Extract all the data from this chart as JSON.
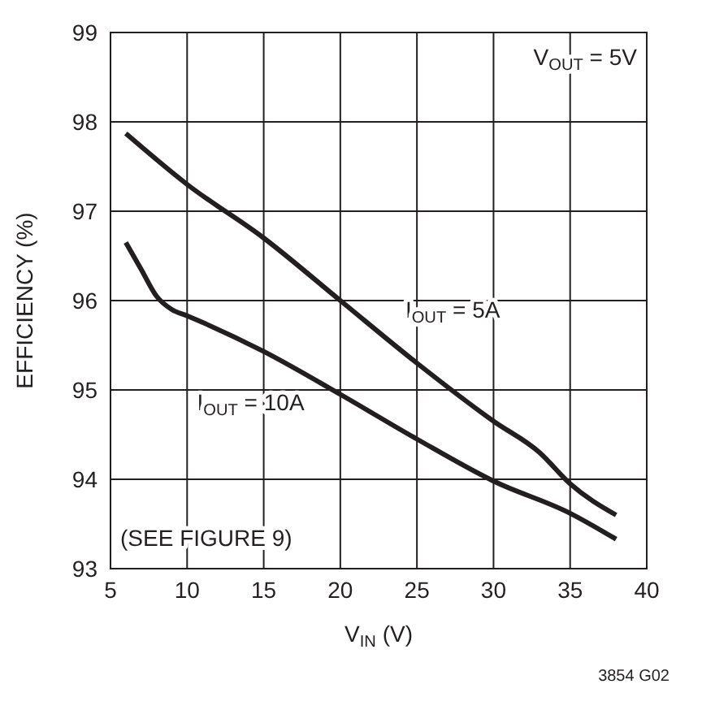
{
  "chart_data": {
    "type": "line",
    "xlabel": "V$_{IN}$ (V)",
    "ylabel": "EFFICIENCY (%)",
    "xlim": [
      5,
      40
    ],
    "xticks": [
      5,
      10,
      15,
      20,
      25,
      30,
      35,
      40
    ],
    "ylim": [
      93,
      99
    ],
    "yticks": [
      93,
      94,
      95,
      96,
      97,
      98,
      99
    ],
    "grid": true,
    "marker": "none",
    "line_style": "solid",
    "annotations": [
      "V$_{OUT}$ = 5V",
      "(SEE FIGURE 9)",
      "3854 G02"
    ],
    "series": [
      {
        "name": "I$_{OUT}$ = 5A",
        "color": "#231f20",
        "x": [
          6,
          10,
          15,
          20,
          25,
          30,
          33,
          35,
          38
        ],
        "values": [
          97.87,
          97.3,
          96.7,
          96.0,
          95.3,
          94.65,
          94.3,
          93.95,
          93.6
        ]
      },
      {
        "name": "I$_{OUT}$ = 10A",
        "color": "#231f20",
        "x": [
          6,
          7,
          8,
          9,
          10,
          15,
          20,
          25,
          30,
          35,
          38
        ],
        "values": [
          96.65,
          96.35,
          96.05,
          95.9,
          95.83,
          95.43,
          94.95,
          94.45,
          93.98,
          93.62,
          93.33
        ]
      }
    ]
  }
}
